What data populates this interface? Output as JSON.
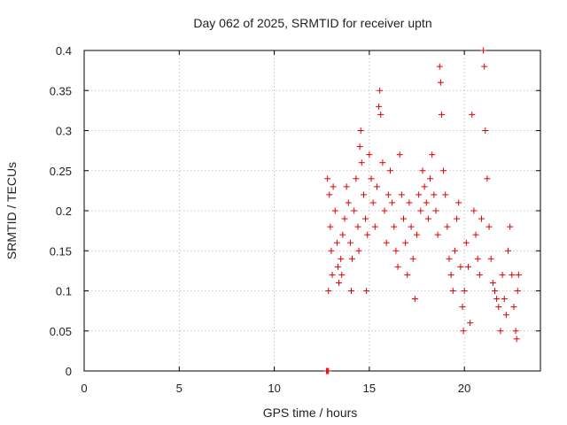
{
  "chart_data": {
    "type": "scatter",
    "title": "Day 062 of 2025, SRMTID for receiver uptn",
    "xlabel": "GPS time / hours",
    "ylabel": "SRMTID / TECUs",
    "xlim": [
      0,
      24
    ],
    "ylim": [
      0,
      0.4
    ],
    "xticks": [
      0,
      5,
      10,
      15,
      20
    ],
    "yticks": [
      0,
      0.05,
      0.1,
      0.15,
      0.2,
      0.25,
      0.3,
      0.35,
      0.4
    ],
    "ytick_labels": [
      "0",
      "0.05",
      "0.1",
      "0.15",
      "0.2",
      "0.25",
      "0.3",
      "0.35",
      "0.4"
    ],
    "grid": true,
    "marker": "plus",
    "color": "#e00000",
    "series": [
      {
        "name": "",
        "points": [
          [
            12.75,
            0.0
          ],
          [
            12.8,
            0.0
          ],
          [
            12.85,
            0.0
          ],
          [
            12.8,
            0.24
          ],
          [
            12.9,
            0.22
          ],
          [
            12.95,
            0.18
          ],
          [
            13.0,
            0.15
          ],
          [
            13.05,
            0.12
          ],
          [
            12.85,
            0.1
          ],
          [
            13.1,
            0.23
          ],
          [
            13.2,
            0.2
          ],
          [
            13.3,
            0.16
          ],
          [
            13.35,
            0.13
          ],
          [
            13.4,
            0.11
          ],
          [
            13.5,
            0.14
          ],
          [
            13.55,
            0.12
          ],
          [
            13.6,
            0.17
          ],
          [
            13.7,
            0.19
          ],
          [
            13.8,
            0.23
          ],
          [
            13.9,
            0.21
          ],
          [
            14.0,
            0.16
          ],
          [
            14.05,
            0.1
          ],
          [
            14.1,
            0.14
          ],
          [
            14.2,
            0.2
          ],
          [
            14.3,
            0.24
          ],
          [
            14.4,
            0.18
          ],
          [
            14.45,
            0.15
          ],
          [
            14.5,
            0.28
          ],
          [
            14.55,
            0.3
          ],
          [
            14.6,
            0.26
          ],
          [
            14.7,
            0.22
          ],
          [
            14.8,
            0.19
          ],
          [
            14.85,
            0.1
          ],
          [
            14.9,
            0.17
          ],
          [
            15.0,
            0.27
          ],
          [
            15.1,
            0.24
          ],
          [
            15.2,
            0.21
          ],
          [
            15.3,
            0.18
          ],
          [
            15.4,
            0.23
          ],
          [
            15.5,
            0.33
          ],
          [
            15.55,
            0.35
          ],
          [
            15.6,
            0.32
          ],
          [
            15.7,
            0.26
          ],
          [
            15.8,
            0.2
          ],
          [
            15.9,
            0.16
          ],
          [
            16.0,
            0.22
          ],
          [
            16.1,
            0.25
          ],
          [
            16.2,
            0.21
          ],
          [
            16.3,
            0.18
          ],
          [
            16.4,
            0.15
          ],
          [
            16.5,
            0.13
          ],
          [
            16.6,
            0.27
          ],
          [
            16.7,
            0.22
          ],
          [
            16.8,
            0.19
          ],
          [
            16.9,
            0.16
          ],
          [
            17.0,
            0.12
          ],
          [
            17.1,
            0.21
          ],
          [
            17.2,
            0.18
          ],
          [
            17.3,
            0.14
          ],
          [
            17.4,
            0.09
          ],
          [
            17.5,
            0.17
          ],
          [
            17.6,
            0.22
          ],
          [
            17.7,
            0.2
          ],
          [
            17.8,
            0.25
          ],
          [
            17.9,
            0.23
          ],
          [
            18.0,
            0.21
          ],
          [
            18.1,
            0.19
          ],
          [
            18.2,
            0.24
          ],
          [
            18.3,
            0.27
          ],
          [
            18.4,
            0.22
          ],
          [
            18.5,
            0.2
          ],
          [
            18.6,
            0.17
          ],
          [
            18.7,
            0.38
          ],
          [
            18.75,
            0.36
          ],
          [
            18.8,
            0.32
          ],
          [
            18.9,
            0.25
          ],
          [
            19.0,
            0.22
          ],
          [
            19.1,
            0.18
          ],
          [
            19.2,
            0.14
          ],
          [
            19.3,
            0.12
          ],
          [
            19.4,
            0.1
          ],
          [
            19.5,
            0.15
          ],
          [
            19.6,
            0.19
          ],
          [
            19.7,
            0.21
          ],
          [
            19.8,
            0.13
          ],
          [
            19.9,
            0.08
          ],
          [
            19.95,
            0.05
          ],
          [
            20.0,
            0.1
          ],
          [
            20.1,
            0.16
          ],
          [
            20.2,
            0.13
          ],
          [
            20.3,
            0.06
          ],
          [
            20.4,
            0.32
          ],
          [
            20.5,
            0.2
          ],
          [
            20.6,
            0.17
          ],
          [
            20.7,
            0.14
          ],
          [
            20.8,
            0.12
          ],
          [
            20.9,
            0.19
          ],
          [
            21.0,
            0.4
          ],
          [
            21.05,
            0.38
          ],
          [
            21.1,
            0.3
          ],
          [
            21.2,
            0.24
          ],
          [
            21.3,
            0.18
          ],
          [
            21.4,
            0.14
          ],
          [
            21.5,
            0.11
          ],
          [
            21.6,
            0.1
          ],
          [
            21.7,
            0.09
          ],
          [
            21.8,
            0.08
          ],
          [
            21.9,
            0.05
          ],
          [
            22.0,
            0.12
          ],
          [
            22.1,
            0.09
          ],
          [
            22.2,
            0.07
          ],
          [
            22.3,
            0.15
          ],
          [
            22.4,
            0.18
          ],
          [
            22.5,
            0.12
          ],
          [
            22.6,
            0.08
          ],
          [
            22.7,
            0.05
          ],
          [
            22.75,
            0.04
          ],
          [
            22.8,
            0.1
          ],
          [
            22.85,
            0.12
          ]
        ]
      }
    ]
  }
}
